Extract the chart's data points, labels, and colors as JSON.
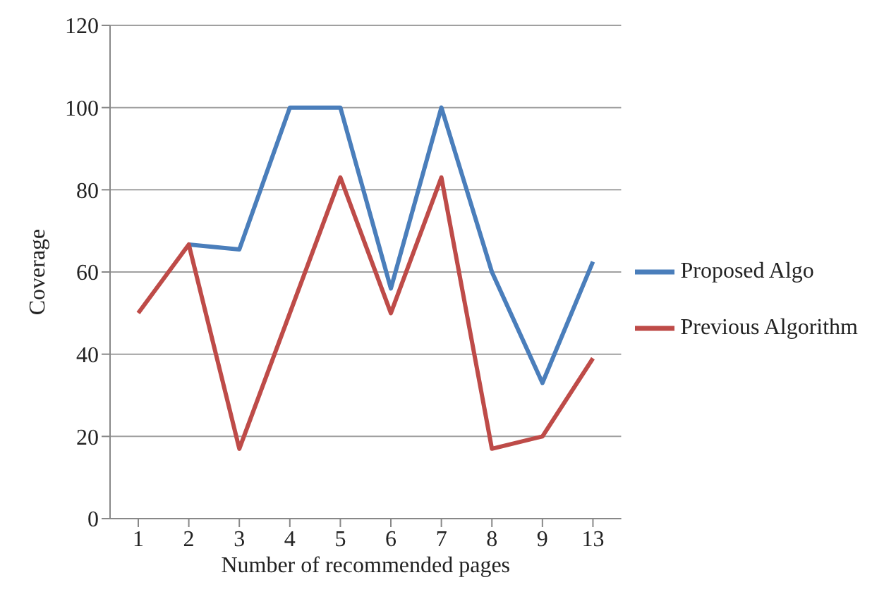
{
  "chart_data": {
    "type": "line",
    "xlabel": "Number of recommended pages",
    "ylabel": "Coverage",
    "categories": [
      "1",
      "2",
      "3",
      "4",
      "5",
      "6",
      "7",
      "8",
      "9",
      "13"
    ],
    "series": [
      {
        "name": "Proposed Algo",
        "color": "#4a7ebb",
        "values": [
          null,
          66.7,
          65.5,
          100,
          100,
          56,
          100,
          60,
          33,
          62.5
        ]
      },
      {
        "name": "Previous Algorithm",
        "color": "#be4b48",
        "values": [
          50,
          66.7,
          17,
          50,
          83,
          50,
          83,
          17,
          20,
          39
        ]
      }
    ],
    "ylim": [
      0,
      120
    ],
    "yticks": [
      0,
      20,
      40,
      60,
      80,
      100,
      120
    ],
    "grid": "y",
    "legend": "right",
    "marker": "none"
  }
}
